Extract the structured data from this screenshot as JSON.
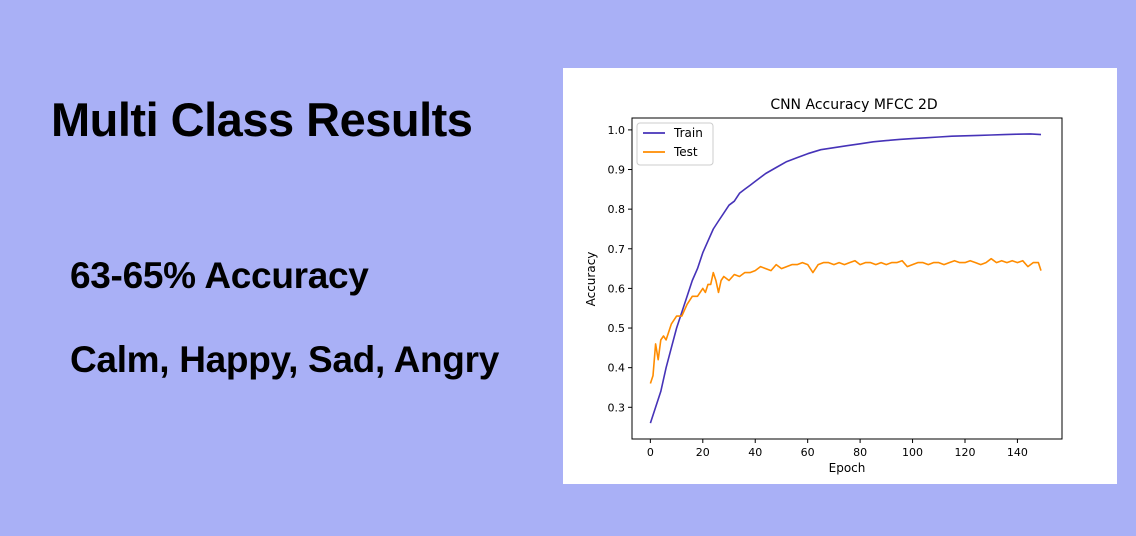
{
  "slide": {
    "title": "Multi Class Results",
    "bullets": [
      "63-65% Accuracy",
      "Calm, Happy, Sad, Angry"
    ]
  },
  "colors": {
    "background": "#a9b0f6",
    "train": "#4633b8",
    "test": "#ff8c00"
  },
  "chart_data": {
    "type": "line",
    "title": "CNN Accuracy MFCC 2D",
    "xlabel": "Epoch",
    "ylabel": "Accuracy",
    "xlim": [
      -7,
      157
    ],
    "ylim": [
      0.22,
      1.03
    ],
    "xticks": [
      0,
      20,
      40,
      60,
      80,
      100,
      120,
      140
    ],
    "yticks": [
      0.3,
      0.4,
      0.5,
      0.6,
      0.7,
      0.8,
      0.9,
      1.0
    ],
    "xtick_labels": [
      "0",
      "20",
      "40",
      "60",
      "80",
      "100",
      "120",
      "140"
    ],
    "ytick_labels": [
      "0.3",
      "0.4",
      "0.5",
      "0.6",
      "0.7",
      "0.8",
      "0.9",
      "1.0"
    ],
    "grid": false,
    "legend_position": "upper-left",
    "series": [
      {
        "name": "Train",
        "color": "#4633b8",
        "x": [
          0,
          2,
          4,
          6,
          8,
          10,
          12,
          14,
          16,
          18,
          20,
          22,
          24,
          26,
          28,
          30,
          32,
          34,
          36,
          38,
          40,
          44,
          48,
          52,
          56,
          60,
          65,
          70,
          75,
          80,
          85,
          90,
          95,
          100,
          105,
          110,
          115,
          120,
          125,
          130,
          135,
          140,
          145,
          149
        ],
        "y": [
          0.26,
          0.3,
          0.34,
          0.4,
          0.45,
          0.5,
          0.54,
          0.58,
          0.62,
          0.65,
          0.69,
          0.72,
          0.75,
          0.77,
          0.79,
          0.81,
          0.82,
          0.84,
          0.85,
          0.86,
          0.87,
          0.89,
          0.905,
          0.92,
          0.93,
          0.94,
          0.95,
          0.955,
          0.96,
          0.965,
          0.97,
          0.973,
          0.976,
          0.978,
          0.98,
          0.982,
          0.984,
          0.985,
          0.986,
          0.987,
          0.988,
          0.989,
          0.99,
          0.988
        ]
      },
      {
        "name": "Test",
        "color": "#ff8c00",
        "x": [
          0,
          1,
          2,
          3,
          4,
          5,
          6,
          7,
          8,
          10,
          12,
          14,
          16,
          18,
          20,
          21,
          22,
          23,
          24,
          25,
          26,
          27,
          28,
          30,
          32,
          34,
          36,
          38,
          40,
          42,
          44,
          46,
          48,
          50,
          52,
          54,
          56,
          58,
          60,
          62,
          64,
          66,
          68,
          70,
          72,
          74,
          76,
          78,
          80,
          82,
          84,
          86,
          88,
          90,
          92,
          94,
          96,
          98,
          100,
          102,
          104,
          106,
          108,
          110,
          112,
          114,
          116,
          118,
          120,
          122,
          124,
          126,
          128,
          130,
          132,
          134,
          136,
          138,
          140,
          142,
          144,
          146,
          148,
          149
        ],
        "y": [
          0.36,
          0.38,
          0.46,
          0.42,
          0.47,
          0.48,
          0.47,
          0.49,
          0.51,
          0.53,
          0.53,
          0.56,
          0.58,
          0.58,
          0.6,
          0.59,
          0.61,
          0.61,
          0.64,
          0.62,
          0.59,
          0.62,
          0.63,
          0.62,
          0.635,
          0.63,
          0.64,
          0.64,
          0.645,
          0.655,
          0.65,
          0.645,
          0.66,
          0.65,
          0.655,
          0.66,
          0.66,
          0.665,
          0.66,
          0.64,
          0.66,
          0.665,
          0.665,
          0.66,
          0.665,
          0.66,
          0.665,
          0.67,
          0.66,
          0.665,
          0.665,
          0.66,
          0.665,
          0.66,
          0.665,
          0.665,
          0.67,
          0.655,
          0.66,
          0.665,
          0.665,
          0.66,
          0.665,
          0.665,
          0.66,
          0.665,
          0.67,
          0.665,
          0.665,
          0.67,
          0.665,
          0.66,
          0.665,
          0.675,
          0.665,
          0.67,
          0.665,
          0.67,
          0.665,
          0.67,
          0.655,
          0.665,
          0.665,
          0.645
        ]
      }
    ]
  }
}
